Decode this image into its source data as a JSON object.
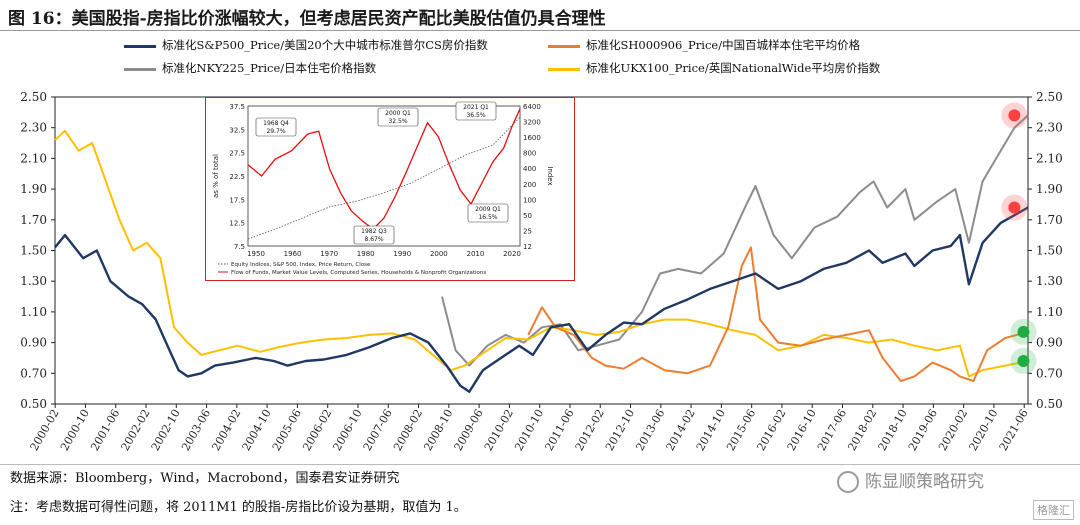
{
  "title": "图 16：美国股指-房指比价涨幅较大，但考虑居民资产配比美股估值仍具合理性",
  "source_note": "数据来源：Bloomberg，Wind，Macrobond，国泰君安证券研究",
  "note": "注：考虑数据可得性问题，将 2011M1 的股指-房指比价设为基期，取值为 1。",
  "watermark": "陈显顺策略研究",
  "logo_text": "格隆汇",
  "chart_data": {
    "type": "line",
    "x_ticks": [
      "2000-02",
      "2000-10",
      "2001-06",
      "2002-02",
      "2002-10",
      "2003-06",
      "2004-02",
      "2004-10",
      "2005-06",
      "2006-02",
      "2006-10",
      "2007-06",
      "2008-02",
      "2008-10",
      "2009-06",
      "2010-02",
      "2010-10",
      "2011-06",
      "2012-02",
      "2012-10",
      "2013-06",
      "2014-02",
      "2014-10",
      "2015-06",
      "2016-02",
      "2016-10",
      "2017-06",
      "2018-02",
      "2018-10",
      "2019-06",
      "2020-02",
      "2020-10",
      "2021-06"
    ],
    "y_ticks": [
      "2.50",
      "2.30",
      "2.10",
      "1.90",
      "1.70",
      "1.50",
      "1.30",
      "1.10",
      "0.90",
      "0.70",
      "0.50"
    ],
    "ylim": [
      0.5,
      2.5
    ],
    "xlim": [
      2000.08,
      2021.5
    ],
    "legend_position": "top",
    "series": [
      {
        "name": "标准化S&P500_Price/美国20个大中城市标准普尔CS房价指数",
        "color": "#1f3864",
        "points": [
          [
            2000.08,
            1.52
          ],
          [
            2000.3,
            1.6
          ],
          [
            2000.7,
            1.45
          ],
          [
            2001.0,
            1.5
          ],
          [
            2001.3,
            1.3
          ],
          [
            2001.7,
            1.2
          ],
          [
            2002.0,
            1.15
          ],
          [
            2002.3,
            1.05
          ],
          [
            2002.6,
            0.85
          ],
          [
            2002.8,
            0.72
          ],
          [
            2003.0,
            0.68
          ],
          [
            2003.3,
            0.7
          ],
          [
            2003.6,
            0.75
          ],
          [
            2004.0,
            0.77
          ],
          [
            2004.5,
            0.8
          ],
          [
            2004.9,
            0.78
          ],
          [
            2005.2,
            0.75
          ],
          [
            2005.6,
            0.78
          ],
          [
            2006.0,
            0.79
          ],
          [
            2006.5,
            0.82
          ],
          [
            2007.0,
            0.87
          ],
          [
            2007.5,
            0.93
          ],
          [
            2007.9,
            0.96
          ],
          [
            2008.3,
            0.9
          ],
          [
            2008.7,
            0.75
          ],
          [
            2009.0,
            0.62
          ],
          [
            2009.2,
            0.58
          ],
          [
            2009.5,
            0.72
          ],
          [
            2009.9,
            0.8
          ],
          [
            2010.3,
            0.88
          ],
          [
            2010.6,
            0.82
          ],
          [
            2011.0,
            1.0
          ],
          [
            2011.4,
            1.02
          ],
          [
            2011.8,
            0.85
          ],
          [
            2012.2,
            0.95
          ],
          [
            2012.6,
            1.03
          ],
          [
            2013.0,
            1.02
          ],
          [
            2013.5,
            1.12
          ],
          [
            2014.0,
            1.18
          ],
          [
            2014.5,
            1.25
          ],
          [
            2015.0,
            1.3
          ],
          [
            2015.5,
            1.35
          ],
          [
            2016.0,
            1.25
          ],
          [
            2016.5,
            1.3
          ],
          [
            2017.0,
            1.38
          ],
          [
            2017.5,
            1.42
          ],
          [
            2018.0,
            1.5
          ],
          [
            2018.3,
            1.42
          ],
          [
            2018.8,
            1.48
          ],
          [
            2019.0,
            1.4
          ],
          [
            2019.4,
            1.5
          ],
          [
            2019.8,
            1.53
          ],
          [
            2020.0,
            1.6
          ],
          [
            2020.2,
            1.28
          ],
          [
            2020.5,
            1.55
          ],
          [
            2020.9,
            1.68
          ],
          [
            2021.2,
            1.73
          ],
          [
            2021.5,
            1.78
          ]
        ]
      },
      {
        "name": "标准化SH000906_Price/中国百城样本住宅平均价格",
        "color": "#ed7d31",
        "points": [
          [
            2010.5,
            0.95
          ],
          [
            2010.8,
            1.13
          ],
          [
            2011.1,
            1.0
          ],
          [
            2011.5,
            0.95
          ],
          [
            2011.9,
            0.8
          ],
          [
            2012.2,
            0.75
          ],
          [
            2012.6,
            0.73
          ],
          [
            2013.0,
            0.8
          ],
          [
            2013.5,
            0.72
          ],
          [
            2014.0,
            0.7
          ],
          [
            2014.5,
            0.75
          ],
          [
            2014.9,
            1.0
          ],
          [
            2015.2,
            1.4
          ],
          [
            2015.4,
            1.52
          ],
          [
            2015.6,
            1.05
          ],
          [
            2016.0,
            0.9
          ],
          [
            2016.5,
            0.88
          ],
          [
            2017.0,
            0.92
          ],
          [
            2017.5,
            0.95
          ],
          [
            2018.0,
            0.98
          ],
          [
            2018.3,
            0.8
          ],
          [
            2018.7,
            0.65
          ],
          [
            2019.0,
            0.68
          ],
          [
            2019.4,
            0.77
          ],
          [
            2019.8,
            0.72
          ],
          [
            2020.0,
            0.68
          ],
          [
            2020.3,
            0.65
          ],
          [
            2020.6,
            0.85
          ],
          [
            2021.0,
            0.93
          ],
          [
            2021.5,
            0.97
          ]
        ]
      },
      {
        "name": "标准化NKY225_Price/日本住宅价格指数",
        "color": "#8c8c8c",
        "points": [
          [
            2008.6,
            1.2
          ],
          [
            2008.9,
            0.85
          ],
          [
            2009.2,
            0.75
          ],
          [
            2009.6,
            0.88
          ],
          [
            2010.0,
            0.95
          ],
          [
            2010.4,
            0.9
          ],
          [
            2010.8,
            1.0
          ],
          [
            2011.2,
            1.02
          ],
          [
            2011.6,
            0.85
          ],
          [
            2012.0,
            0.88
          ],
          [
            2012.5,
            0.92
          ],
          [
            2013.0,
            1.1
          ],
          [
            2013.4,
            1.35
          ],
          [
            2013.8,
            1.38
          ],
          [
            2014.3,
            1.35
          ],
          [
            2014.8,
            1.48
          ],
          [
            2015.3,
            1.8
          ],
          [
            2015.5,
            1.92
          ],
          [
            2015.9,
            1.6
          ],
          [
            2016.3,
            1.45
          ],
          [
            2016.8,
            1.65
          ],
          [
            2017.3,
            1.72
          ],
          [
            2017.8,
            1.88
          ],
          [
            2018.1,
            1.95
          ],
          [
            2018.4,
            1.78
          ],
          [
            2018.8,
            1.9
          ],
          [
            2019.0,
            1.7
          ],
          [
            2019.5,
            1.82
          ],
          [
            2019.9,
            1.9
          ],
          [
            2020.2,
            1.55
          ],
          [
            2020.5,
            1.95
          ],
          [
            2020.9,
            2.15
          ],
          [
            2021.2,
            2.3
          ],
          [
            2021.5,
            2.38
          ]
        ]
      },
      {
        "name": "标准化UKX100_Price/英国NationalWide平均房价指数",
        "color": "#ffc000",
        "points": [
          [
            2000.08,
            2.22
          ],
          [
            2000.3,
            2.28
          ],
          [
            2000.6,
            2.15
          ],
          [
            2000.9,
            2.2
          ],
          [
            2001.2,
            1.95
          ],
          [
            2001.5,
            1.7
          ],
          [
            2001.8,
            1.5
          ],
          [
            2002.1,
            1.55
          ],
          [
            2002.4,
            1.45
          ],
          [
            2002.7,
            1.0
          ],
          [
            2003.0,
            0.9
          ],
          [
            2003.3,
            0.82
          ],
          [
            2003.7,
            0.85
          ],
          [
            2004.1,
            0.88
          ],
          [
            2004.6,
            0.84
          ],
          [
            2005.0,
            0.87
          ],
          [
            2005.5,
            0.9
          ],
          [
            2006.0,
            0.92
          ],
          [
            2006.5,
            0.93
          ],
          [
            2007.0,
            0.95
          ],
          [
            2007.5,
            0.96
          ],
          [
            2008.0,
            0.92
          ],
          [
            2008.4,
            0.82
          ],
          [
            2008.8,
            0.72
          ],
          [
            2009.1,
            0.75
          ],
          [
            2009.6,
            0.85
          ],
          [
            2010.0,
            0.93
          ],
          [
            2010.5,
            0.92
          ],
          [
            2011.0,
            1.0
          ],
          [
            2011.5,
            0.98
          ],
          [
            2012.0,
            0.95
          ],
          [
            2012.5,
            0.97
          ],
          [
            2013.0,
            1.02
          ],
          [
            2013.5,
            1.05
          ],
          [
            2014.0,
            1.05
          ],
          [
            2014.5,
            1.02
          ],
          [
            2015.0,
            0.98
          ],
          [
            2015.5,
            0.95
          ],
          [
            2016.0,
            0.85
          ],
          [
            2016.5,
            0.88
          ],
          [
            2017.0,
            0.95
          ],
          [
            2017.5,
            0.93
          ],
          [
            2018.0,
            0.9
          ],
          [
            2018.5,
            0.92
          ],
          [
            2019.0,
            0.88
          ],
          [
            2019.5,
            0.85
          ],
          [
            2020.0,
            0.88
          ],
          [
            2020.2,
            0.68
          ],
          [
            2020.5,
            0.72
          ],
          [
            2021.0,
            0.75
          ],
          [
            2021.5,
            0.78
          ]
        ]
      }
    ]
  },
  "inset": {
    "y_left_ticks": [
      "37.5",
      "32.5",
      "27.5",
      "22.5",
      "17.5",
      "12.5",
      "7.5"
    ],
    "y_left_label": "as % of total",
    "y_right_ticks": [
      "6400",
      "3200",
      "1600",
      "800",
      "400",
      "200",
      "100",
      "50",
      "25",
      "12"
    ],
    "y_right_label": "Index",
    "x_ticks": [
      "1950",
      "1960",
      "1970",
      "1980",
      "1990",
      "2000",
      "2010",
      "2020"
    ],
    "annotations": [
      "1968 Q4\n29.7%",
      "2000 Q1\n32.5%",
      "2021 Q1\n36.5%",
      "2009 Q1\n16.5%",
      "1982 Q3\n8.67%"
    ],
    "legend": [
      "Equity Indices, S&P 500, Index, Price Return, Close",
      "Flow of Funds, Market Value Levels, Computed Series, Households & Nonprofit Organizations"
    ]
  }
}
